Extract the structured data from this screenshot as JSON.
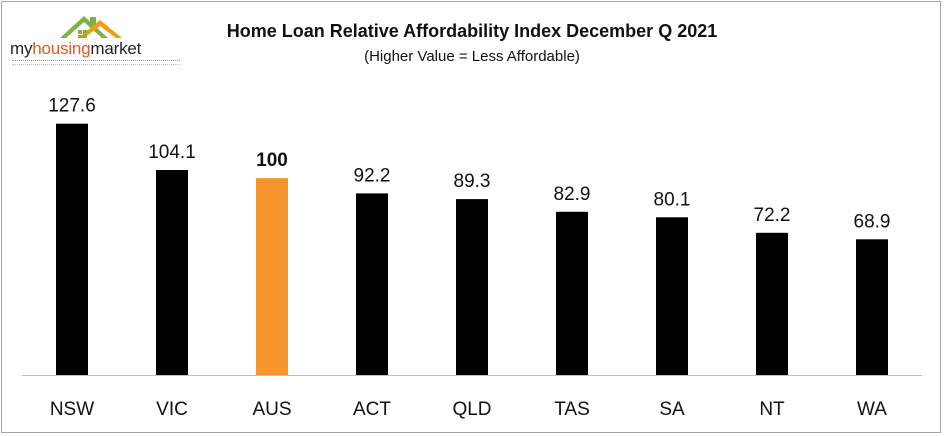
{
  "logo": {
    "wordmark_part1": "my",
    "wordmark_part2": "housing",
    "wordmark_part3": "market"
  },
  "colors": {
    "bar_default": "#000000",
    "bar_highlight": "#f7962f",
    "axis": "#bfbfbf",
    "text": "#111111",
    "logo_roof_green": "#7cb342",
    "logo_roof_orange": "#f39c12",
    "logo_accent": "#e05a1e"
  },
  "chart_data": {
    "type": "bar",
    "title": "Home Loan Relative Affordability Index December Q 2021",
    "subtitle": "(Higher Value = Less Affordable)",
    "categories": [
      "NSW",
      "VIC",
      "AUS",
      "ACT",
      "QLD",
      "TAS",
      "SA",
      "NT",
      "WA"
    ],
    "values": [
      127.6,
      104.1,
      100,
      92.2,
      89.3,
      82.9,
      80.1,
      72.2,
      68.9
    ],
    "data_labels": [
      "127.6",
      "104.1",
      "100",
      "92.2",
      "89.3",
      "82.9",
      "80.1",
      "72.2",
      "68.9"
    ],
    "highlight_category": "AUS",
    "xlabel": "",
    "ylabel": "",
    "ylim": [
      0,
      130
    ],
    "grid": false,
    "legend": "none"
  }
}
